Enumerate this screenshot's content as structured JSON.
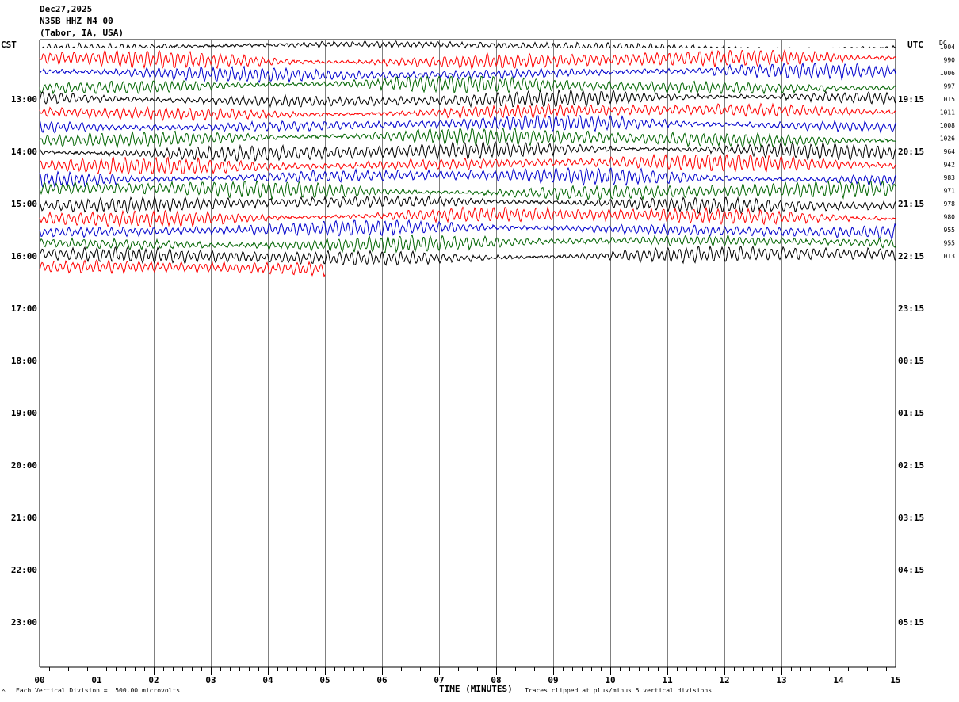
{
  "header": {
    "date": "Dec27,2025",
    "station": "N35B HHZ N4 00",
    "location": "(Tabor, IA, USA)"
  },
  "left_tz": "CST",
  "right_tz": "UTC",
  "dc_label": "DC",
  "footer": {
    "scale": "Each Vertical Division =  500.00 microvolts",
    "xlabel": "TIME (MINUTES)",
    "clip_note": "Traces clipped at plus/minus 5 vertical divisions",
    "corner_mark": "^"
  },
  "colors": {
    "trace_cycle": [
      "#000000",
      "#ff0000",
      "#0000cc",
      "#006400"
    ],
    "grid": "#808080"
  },
  "chart_data": {
    "type": "line",
    "xlabel": "TIME (MINUTES)",
    "x_ticks": [
      "00",
      "01",
      "02",
      "03",
      "04",
      "05",
      "06",
      "07",
      "08",
      "09",
      "10",
      "11",
      "12",
      "13",
      "14",
      "15"
    ],
    "xlim": [
      0,
      15
    ],
    "minutes_per_line": 15,
    "left_hour_labels": [
      "13:00",
      "14:00",
      "15:00",
      "16:00",
      "17:00",
      "18:00",
      "19:00",
      "20:00",
      "21:00",
      "22:00",
      "23:00"
    ],
    "right_hour_labels": [
      "19:15",
      "20:15",
      "21:15",
      "22:15",
      "23:15",
      "00:15",
      "01:15",
      "02:15",
      "03:15",
      "04:15",
      "05:15"
    ],
    "dc_offsets": [
      "1004",
      "990",
      "1006",
      "997",
      "1015",
      "1011",
      "1008",
      "1026",
      "964",
      "942",
      "983",
      "971",
      "978",
      "980",
      "955",
      "955",
      "1013"
    ],
    "trace_count": 18,
    "last_trace_end_minute": 5,
    "clip_divisions": 5
  }
}
